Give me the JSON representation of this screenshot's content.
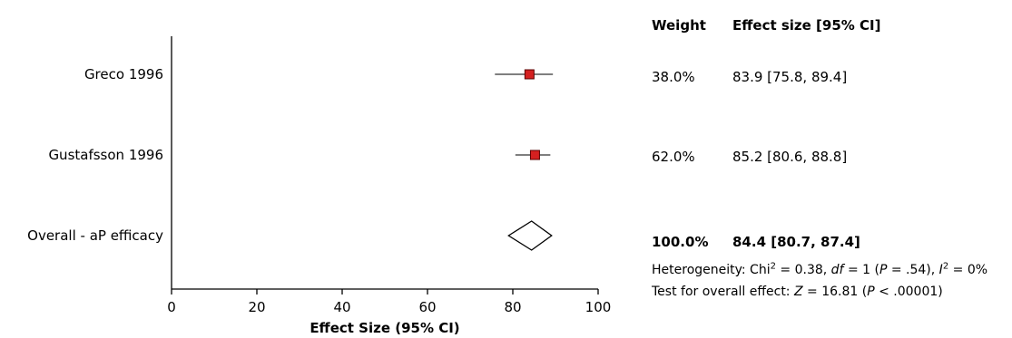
{
  "chart_data": {
    "type": "forest",
    "xlabel": "Effect Size (95% CI)",
    "xlim": [
      0,
      100
    ],
    "xticks": [
      "0",
      "20",
      "40",
      "60",
      "80",
      "100"
    ],
    "columns": {
      "weight": "Weight",
      "effect": "Effect size [95% CI]"
    },
    "studies": [
      {
        "label": "Greco 1996",
        "value": 83.9,
        "ci": [
          75.8,
          89.4
        ],
        "weight": "38.0%",
        "effect_text": "83.9 [75.8, 89.4]"
      },
      {
        "label": "Gustafsson 1996",
        "value": 85.2,
        "ci": [
          80.6,
          88.8
        ],
        "weight": "62.0%",
        "effect_text": "85.2 [80.6, 88.8]"
      }
    ],
    "overall": {
      "label": "Overall - aP efficacy",
      "value": 84.4,
      "ci": [
        80.7,
        87.4
      ],
      "weight": "100.0%",
      "effect_text": "84.4 [80.7, 87.4]"
    },
    "heterogeneity": {
      "prefix": "Heterogeneity: Chi",
      "chi2_exp": "2",
      "chi2_value": " = 0.38, ",
      "df_label": "df",
      "df_value": " = 1 (",
      "p_label": "P",
      "p_value": " = .54), ",
      "i2_label": "I",
      "i2_exp": "2",
      "i2_value": " = 0%"
    },
    "overall_test": {
      "prefix": "Test for overall effect: ",
      "z_label": "Z",
      "z_value": " = 16.81 (",
      "p_label": "P",
      "p_value": " < .00001)"
    },
    "colors": {
      "square": "#d42020",
      "square_border": "#5a0000",
      "axis": "#000000"
    }
  }
}
